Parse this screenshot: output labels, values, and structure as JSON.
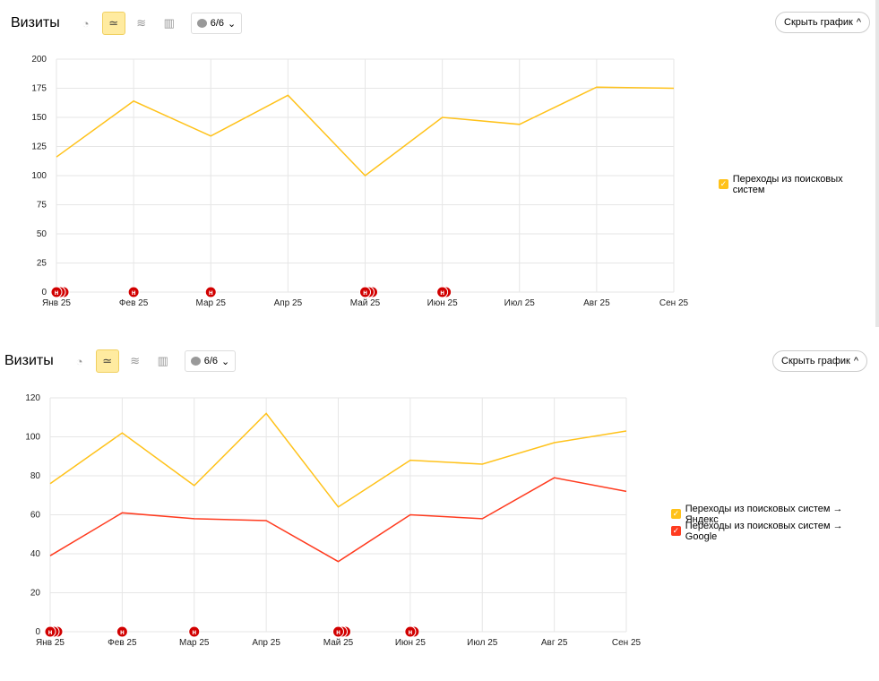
{
  "panels": [
    {
      "title": "Визиты",
      "notes_label": "6/6",
      "hide_label": "Скрыть график",
      "chart_data": {
        "type": "line",
        "categories": [
          "Янв 25",
          "Фев 25",
          "Мар 25",
          "Апр 25",
          "Май 25",
          "Июн 25",
          "Июл 25",
          "Авг 25",
          "Сен 25"
        ],
        "ylim": [
          0,
          200
        ],
        "yticks": [
          0,
          25,
          50,
          75,
          100,
          125,
          150,
          175,
          200
        ],
        "grid": true,
        "legend": "right",
        "series": [
          {
            "name": "Переходы из поисковых систем",
            "color": "#ffc21a",
            "values": [
              116,
              164,
              134,
              169,
              100,
              150,
              144,
              176,
              175
            ]
          }
        ],
        "annotations": {
          "label": "н",
          "counts": [
            3,
            1,
            1,
            0,
            3,
            2,
            0,
            0,
            0
          ]
        }
      }
    },
    {
      "title": "Визиты",
      "notes_label": "6/6",
      "hide_label": "Скрыть график",
      "chart_data": {
        "type": "line",
        "categories": [
          "Янв 25",
          "Фев 25",
          "Мар 25",
          "Апр 25",
          "Май 25",
          "Июн 25",
          "Июл 25",
          "Авг 25",
          "Сен 25"
        ],
        "ylim": [
          0,
          120
        ],
        "yticks": [
          0,
          20,
          40,
          60,
          80,
          100,
          120
        ],
        "grid": true,
        "legend": "right",
        "series": [
          {
            "name": "Переходы из поисковых систем → Яндекс",
            "color": "#ffc21a",
            "values": [
              76,
              102,
              75,
              112,
              64,
              88,
              86,
              97,
              103
            ]
          },
          {
            "name": "Переходы из поисковых систем → Google",
            "color": "#ff3b1f",
            "values": [
              39,
              61,
              58,
              57,
              36,
              60,
              58,
              79,
              72
            ]
          }
        ],
        "annotations": {
          "label": "н",
          "counts": [
            3,
            1,
            1,
            0,
            3,
            2,
            0,
            0,
            0
          ]
        }
      }
    }
  ]
}
